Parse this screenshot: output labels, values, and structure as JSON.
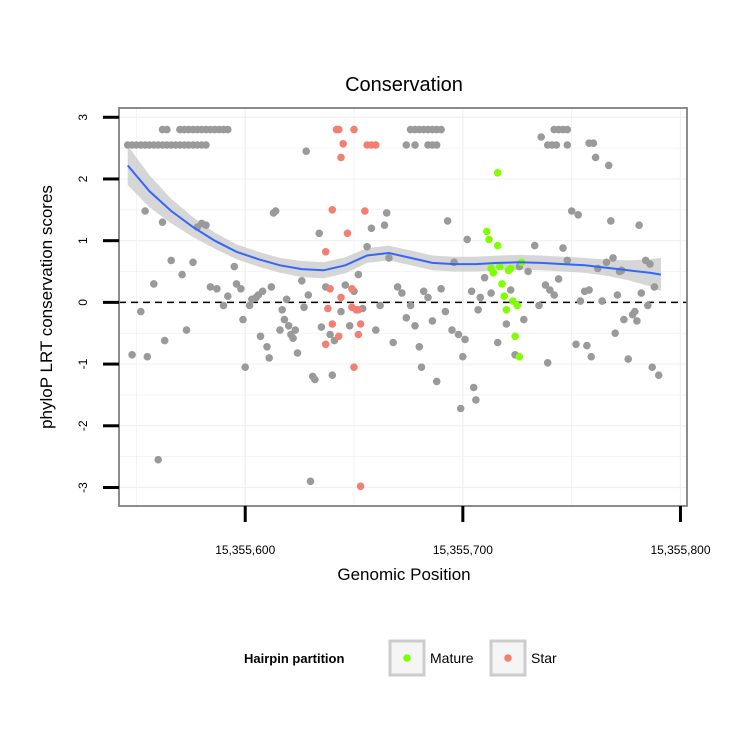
{
  "chart_data": {
    "type": "scatter",
    "title": "Conservation",
    "xlabel": "Genomic Position",
    "ylabel": "phyloP LRT conservation scores",
    "xlim": [
      15355542,
      15355803
    ],
    "ylim": [
      -3.3,
      3.15
    ],
    "x_ticks": [
      15355600,
      15355700,
      15355800
    ],
    "x_tick_labels": [
      "15,355,600",
      "15,355,700",
      "15,355,800"
    ],
    "y_ticks": [
      -3,
      -2,
      -1,
      0,
      1,
      2,
      3
    ],
    "y_tick_labels": [
      "-3",
      "-2",
      "-1",
      "0",
      "1",
      "2",
      "3"
    ],
    "grid": true,
    "reference_line": {
      "y": 0,
      "style": "dashed",
      "color": "#000000"
    },
    "legend": {
      "title": "Hairpin partition",
      "position": "bottom",
      "entries": [
        {
          "label": "Mature",
          "color": "#7fff00"
        },
        {
          "label": "Star",
          "color": "#f28072"
        }
      ]
    },
    "colors": {
      "background_points": "#9a9a9a",
      "mature": "#7fff00",
      "star": "#f28072",
      "smooth_line": "#3366ff",
      "smooth_band": "#cccccc"
    },
    "series": [
      {
        "category": "background",
        "points": [
          [
            15355546,
            2.55
          ],
          [
            15355548,
            2.55
          ],
          [
            15355550,
            2.55
          ],
          [
            15355552,
            2.55
          ],
          [
            15355554,
            2.55
          ],
          [
            15355556,
            2.55
          ],
          [
            15355558,
            2.55
          ],
          [
            15355560,
            2.55
          ],
          [
            15355562,
            2.55
          ],
          [
            15355564,
            2.55
          ],
          [
            15355566,
            2.55
          ],
          [
            15355568,
            2.55
          ],
          [
            15355570,
            2.55
          ],
          [
            15355572,
            2.55
          ],
          [
            15355574,
            2.55
          ],
          [
            15355576,
            2.55
          ],
          [
            15355578,
            2.55
          ],
          [
            15355580,
            2.55
          ],
          [
            15355582,
            2.55
          ],
          [
            15355562,
            2.8
          ],
          [
            15355564,
            2.8
          ],
          [
            15355570,
            2.8
          ],
          [
            15355572,
            2.8
          ],
          [
            15355574,
            2.8
          ],
          [
            15355576,
            2.8
          ],
          [
            15355578,
            2.8
          ],
          [
            15355580,
            2.8
          ],
          [
            15355582,
            2.8
          ],
          [
            15355584,
            2.8
          ],
          [
            15355586,
            2.8
          ],
          [
            15355588,
            2.8
          ],
          [
            15355590,
            2.8
          ],
          [
            15355592,
            2.8
          ],
          [
            15355676,
            2.8
          ],
          [
            15355678,
            2.8
          ],
          [
            15355680,
            2.8
          ],
          [
            15355682,
            2.8
          ],
          [
            15355684,
            2.8
          ],
          [
            15355686,
            2.8
          ],
          [
            15355688,
            2.8
          ],
          [
            15355690,
            2.8
          ],
          [
            15355674,
            2.55
          ],
          [
            15355678,
            2.55
          ],
          [
            15355684,
            2.55
          ],
          [
            15355686,
            2.55
          ],
          [
            15355688,
            2.55
          ],
          [
            15355742,
            2.8
          ],
          [
            15355744,
            2.8
          ],
          [
            15355746,
            2.8
          ],
          [
            15355748,
            2.8
          ],
          [
            15355739,
            2.55
          ],
          [
            15355741,
            2.55
          ],
          [
            15355743,
            2.55
          ],
          [
            15355748,
            2.55
          ],
          [
            15355758,
            2.58
          ],
          [
            15355760,
            2.58
          ],
          [
            15355761,
            2.35
          ],
          [
            15355767,
            2.22
          ],
          [
            15355628,
            2.45
          ],
          [
            15355548,
            -0.85
          ],
          [
            15355552,
            -0.15
          ],
          [
            15355554,
            1.48
          ],
          [
            15355555,
            -0.88
          ],
          [
            15355558,
            0.3
          ],
          [
            15355560,
            -2.55
          ],
          [
            15355562,
            1.3
          ],
          [
            15355563,
            -0.62
          ],
          [
            15355566,
            0.68
          ],
          [
            15355571,
            0.45
          ],
          [
            15355573,
            -0.45
          ],
          [
            15355576,
            0.65
          ],
          [
            15355578,
            1.22
          ],
          [
            15355580,
            1.28
          ],
          [
            15355582,
            1.25
          ],
          [
            15355584,
            0.25
          ],
          [
            15355587,
            0.22
          ],
          [
            15355590,
            -0.05
          ],
          [
            15355592,
            0.1
          ],
          [
            15355595,
            0.58
          ],
          [
            15355596,
            0.3
          ],
          [
            15355598,
            0.22
          ],
          [
            15355599,
            -0.28
          ],
          [
            15355600,
            -1.05
          ],
          [
            15355602,
            -0.05
          ],
          [
            15355603,
            0.05
          ],
          [
            15355605,
            0.08
          ],
          [
            15355606,
            0.12
          ],
          [
            15355607,
            -0.55
          ],
          [
            15355608,
            0.18
          ],
          [
            15355610,
            -0.72
          ],
          [
            15355611,
            -0.9
          ],
          [
            15355612,
            0.25
          ],
          [
            15355613,
            1.45
          ],
          [
            15355614,
            1.48
          ],
          [
            15355616,
            -0.45
          ],
          [
            15355617,
            -0.12
          ],
          [
            15355618,
            -0.28
          ],
          [
            15355619,
            0.05
          ],
          [
            15355620,
            -0.38
          ],
          [
            15355621,
            -0.52
          ],
          [
            15355622,
            -0.58
          ],
          [
            15355623,
            -0.45
          ],
          [
            15355624,
            -0.82
          ],
          [
            15355626,
            0.35
          ],
          [
            15355627,
            -0.08
          ],
          [
            15355629,
            0.12
          ],
          [
            15355630,
            -2.9
          ],
          [
            15355631,
            -1.2
          ],
          [
            15355632,
            -1.25
          ],
          [
            15355634,
            1.12
          ],
          [
            15355635,
            -0.4
          ],
          [
            15355637,
            0.25
          ],
          [
            15355639,
            -0.52
          ],
          [
            15355640,
            -1.18
          ],
          [
            15355641,
            -0.62
          ],
          [
            15355642,
            2.8
          ],
          [
            15355644,
            -0.15
          ],
          [
            15355646,
            0.28
          ],
          [
            15355648,
            -0.38
          ],
          [
            15355650,
            0.18
          ],
          [
            15355652,
            0.45
          ],
          [
            15355654,
            -0.1
          ],
          [
            15355656,
            0.9
          ],
          [
            15355658,
            1.2
          ],
          [
            15355660,
            -0.45
          ],
          [
            15355662,
            -0.05
          ],
          [
            15355664,
            1.25
          ],
          [
            15355665,
            1.45
          ],
          [
            15355666,
            0.72
          ],
          [
            15355668,
            -0.65
          ],
          [
            15355670,
            0.25
          ],
          [
            15355672,
            0.15
          ],
          [
            15355674,
            -0.25
          ],
          [
            15355676,
            -0.05
          ],
          [
            15355678,
            -0.38
          ],
          [
            15355680,
            -0.72
          ],
          [
            15355681,
            -1.05
          ],
          [
            15355682,
            0.18
          ],
          [
            15355684,
            0.08
          ],
          [
            15355686,
            -0.3
          ],
          [
            15355688,
            -1.28
          ],
          [
            15355690,
            0.22
          ],
          [
            15355692,
            -0.15
          ],
          [
            15355693,
            1.32
          ],
          [
            15355695,
            -0.45
          ],
          [
            15355696,
            0.65
          ],
          [
            15355698,
            -0.52
          ],
          [
            15355699,
            -1.72
          ],
          [
            15355700,
            -0.88
          ],
          [
            15355701,
            -0.6
          ],
          [
            15355702,
            1.02
          ],
          [
            15355704,
            0.18
          ],
          [
            15355705,
            -1.38
          ],
          [
            15355706,
            -1.58
          ],
          [
            15355707,
            -0.12
          ],
          [
            15355708,
            0.08
          ],
          [
            15355710,
            0.4
          ],
          [
            15355713,
            0.15
          ],
          [
            15355716,
            -0.65
          ],
          [
            15355720,
            -0.35
          ],
          [
            15355722,
            0.2
          ],
          [
            15355724,
            -0.85
          ],
          [
            15355726,
            0.58
          ],
          [
            15355728,
            -0.28
          ],
          [
            15355730,
            0.5
          ],
          [
            15355733,
            0.92
          ],
          [
            15355735,
            -0.05
          ],
          [
            15355736,
            2.68
          ],
          [
            15355738,
            0.28
          ],
          [
            15355739,
            -0.98
          ],
          [
            15355740,
            0.2
          ],
          [
            15355742,
            0.12
          ],
          [
            15355744,
            0.38
          ],
          [
            15355746,
            0.88
          ],
          [
            15355748,
            0.68
          ],
          [
            15355750,
            1.48
          ],
          [
            15355752,
            -0.68
          ],
          [
            15355753,
            1.42
          ],
          [
            15355754,
            0.02
          ],
          [
            15355756,
            0.18
          ],
          [
            15355757,
            -0.7
          ],
          [
            15355758,
            0.2
          ],
          [
            15355759,
            -0.88
          ],
          [
            15355762,
            0.55
          ],
          [
            15355764,
            0.02
          ],
          [
            15355766,
            0.65
          ],
          [
            15355768,
            1.32
          ],
          [
            15355769,
            0.72
          ],
          [
            15355770,
            -0.5
          ],
          [
            15355771,
            0.12
          ],
          [
            15355772,
            0.5
          ],
          [
            15355773,
            0.52
          ],
          [
            15355774,
            -0.28
          ],
          [
            15355776,
            -0.92
          ],
          [
            15355778,
            -0.2
          ],
          [
            15355779,
            -0.15
          ],
          [
            15355780,
            -0.3
          ],
          [
            15355781,
            1.25
          ],
          [
            15355782,
            0.15
          ],
          [
            15355784,
            0.68
          ],
          [
            15355785,
            -0.05
          ],
          [
            15355786,
            0.62
          ],
          [
            15355787,
            -1.05
          ],
          [
            15355788,
            0.25
          ],
          [
            15355790,
            -1.18
          ]
        ]
      },
      {
        "category": "mature",
        "points": [
          [
            15355716,
            2.1
          ],
          [
            15355711,
            1.15
          ],
          [
            15355712,
            1.02
          ],
          [
            15355713,
            0.55
          ],
          [
            15355714,
            0.48
          ],
          [
            15355716,
            0.92
          ],
          [
            15355717,
            0.58
          ],
          [
            15355718,
            0.3
          ],
          [
            15355719,
            0.1
          ],
          [
            15355720,
            -0.12
          ],
          [
            15355721,
            0.52
          ],
          [
            15355722,
            0.55
          ],
          [
            15355723,
            0.02
          ],
          [
            15355724,
            -0.55
          ],
          [
            15355725,
            -0.05
          ],
          [
            15355726,
            -0.88
          ],
          [
            15355727,
            0.65
          ]
        ]
      },
      {
        "category": "star",
        "points": [
          [
            15355642,
            2.8
          ],
          [
            15355643,
            2.8
          ],
          [
            15355645,
            2.57
          ],
          [
            15355644,
            2.35
          ],
          [
            15355650,
            2.8
          ],
          [
            15355656,
            2.55
          ],
          [
            15355658,
            2.55
          ],
          [
            15355660,
            2.55
          ],
          [
            15355640,
            1.5
          ],
          [
            15355655,
            1.48
          ],
          [
            15355647,
            1.12
          ],
          [
            15355637,
            0.82
          ],
          [
            15355639,
            0.22
          ],
          [
            15355644,
            0.08
          ],
          [
            15355649,
            0.22
          ],
          [
            15355638,
            -0.1
          ],
          [
            15355649,
            -0.08
          ],
          [
            15355651,
            -0.12
          ],
          [
            15355652,
            -0.12
          ],
          [
            15355640,
            -0.35
          ],
          [
            15355653,
            -0.35
          ],
          [
            15355643,
            -0.55
          ],
          [
            15355652,
            -0.52
          ],
          [
            15355637,
            -0.68
          ],
          [
            15355650,
            -1.05
          ],
          [
            15355653,
            -2.98
          ]
        ]
      }
    ],
    "smooth": {
      "x": [
        15355546,
        15355556,
        15355566,
        15355576,
        15355586,
        15355596,
        15355606,
        15355616,
        15355626,
        15355636,
        15355646,
        15355656,
        15355666,
        15355676,
        15355686,
        15355696,
        15355706,
        15355716,
        15355726,
        15355736,
        15355746,
        15355756,
        15355766,
        15355776,
        15355786,
        15355791
      ],
      "y": [
        2.22,
        1.8,
        1.48,
        1.22,
        1.0,
        0.82,
        0.7,
        0.6,
        0.54,
        0.52,
        0.6,
        0.76,
        0.8,
        0.72,
        0.64,
        0.62,
        0.62,
        0.64,
        0.65,
        0.64,
        0.62,
        0.6,
        0.56,
        0.52,
        0.48,
        0.45
      ],
      "se": [
        0.32,
        0.26,
        0.2,
        0.16,
        0.13,
        0.12,
        0.12,
        0.12,
        0.13,
        0.13,
        0.13,
        0.12,
        0.12,
        0.12,
        0.12,
        0.12,
        0.12,
        0.12,
        0.12,
        0.12,
        0.12,
        0.12,
        0.13,
        0.16,
        0.22,
        0.27
      ]
    }
  }
}
